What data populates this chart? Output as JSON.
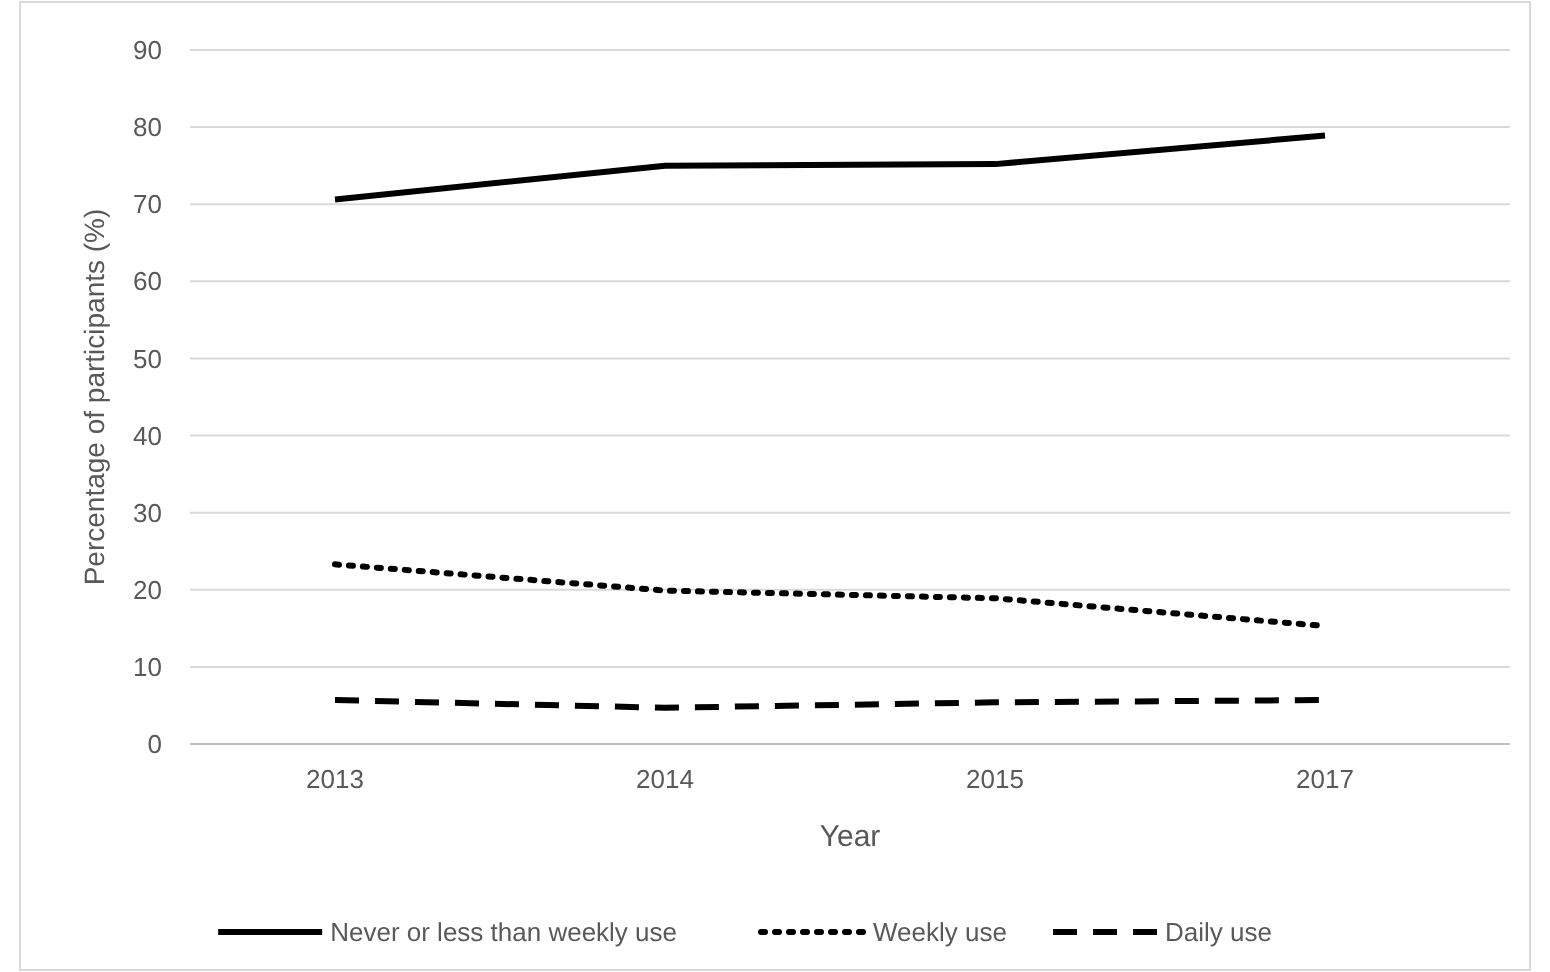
{
  "chart_data": {
    "type": "line",
    "xlabel": "Year",
    "ylabel": "Percentage of participants (%)",
    "categories": [
      "2013",
      "2014",
      "2015",
      "2017"
    ],
    "ylim": [
      0,
      90
    ],
    "yticks": [
      0,
      10,
      20,
      30,
      40,
      50,
      60,
      70,
      80,
      90
    ],
    "grid": "y",
    "legend": "bottom",
    "marker": "none",
    "series": [
      {
        "name": "Never or less than weekly use",
        "color": "#000000",
        "line_style": "solid",
        "values": [
          70.6,
          75,
          75.2,
          78.9
        ]
      },
      {
        "name": "Weekly use",
        "color": "#000000",
        "line_style": "dotted",
        "values": [
          23.3,
          19.9,
          18.9,
          15.3
        ]
      },
      {
        "name": "Daily use",
        "color": "#000000",
        "line_style": "dashed",
        "values": [
          5.7,
          4.7,
          5.4,
          5.7
        ]
      }
    ]
  }
}
